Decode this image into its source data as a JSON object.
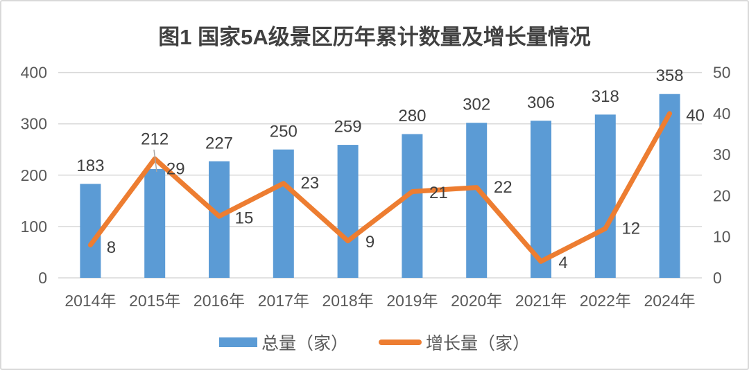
{
  "chart_data": {
    "type": "bar+line combo",
    "title": "图1  国家5A级景区历年累计数量及增长量情况",
    "categories": [
      "2014年",
      "2015年",
      "2016年",
      "2017年",
      "2018年",
      "2019年",
      "2020年",
      "2021年",
      "2022年",
      "2024年"
    ],
    "series": [
      {
        "name": "总量（家）",
        "type": "bar",
        "axis": "left",
        "color": "#5B9BD5",
        "values": [
          183,
          212,
          227,
          250,
          259,
          280,
          302,
          306,
          318,
          358
        ]
      },
      {
        "name": "增长量（家）",
        "type": "line",
        "axis": "right",
        "color": "#ED7D31",
        "values": [
          8,
          29,
          15,
          23,
          9,
          21,
          22,
          4,
          12,
          40
        ]
      }
    ],
    "left_axis": {
      "min": 0,
      "max": 400,
      "ticks": [
        0,
        100,
        200,
        300,
        400
      ]
    },
    "right_axis": {
      "min": 0,
      "max": 50,
      "ticks": [
        0,
        10,
        20,
        30,
        40,
        50
      ]
    },
    "grid": "horizontal gridlines at left-axis ticks",
    "legend_position": "bottom",
    "data_labels": "shown for every point of both series"
  },
  "colors": {
    "bar": "#5B9BD5",
    "line": "#ED7D31",
    "gridline": "#D9D9D9",
    "axis_text": "#595959",
    "data_label_text": "#404040",
    "title_text": "#404040",
    "leader_line": "#a6a6a6",
    "border": "#d9d9d9"
  }
}
